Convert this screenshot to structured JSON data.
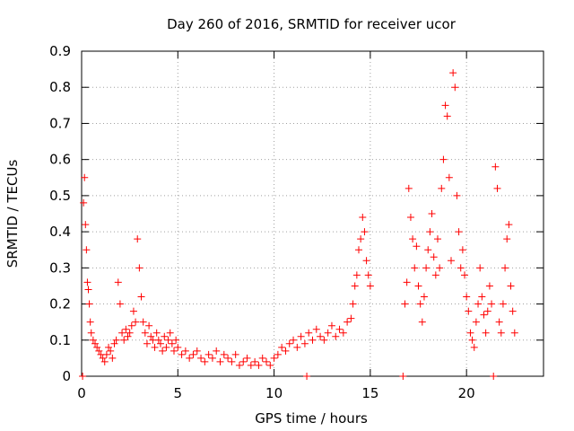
{
  "chart_data": {
    "type": "scatter",
    "title": "Day 260 of 2016, SRMTID for receiver ucor",
    "xlabel": "GPS time / hours",
    "ylabel": "SRMTID / TECUs",
    "xlim": [
      0,
      24
    ],
    "ylim": [
      0,
      0.9
    ],
    "x_ticks": [
      0,
      5,
      10,
      15,
      20
    ],
    "x_tick_labels": [
      "0",
      "5",
      "10",
      "15",
      "20"
    ],
    "y_ticks": [
      0,
      0.1,
      0.2,
      0.3,
      0.4,
      0.5,
      0.6,
      0.7,
      0.8,
      0.9
    ],
    "y_tick_labels": [
      "0",
      "0.1",
      "0.2",
      "0.3",
      "0.4",
      "0.5",
      "0.6",
      "0.7",
      "0.8",
      "0.9"
    ],
    "grid": true,
    "marker": "+",
    "color": "#ff0000",
    "series": [
      {
        "name": "SRMTID",
        "points": [
          [
            0.05,
            0.0
          ],
          [
            0.1,
            0.48
          ],
          [
            0.15,
            0.55
          ],
          [
            0.2,
            0.42
          ],
          [
            0.25,
            0.35
          ],
          [
            0.3,
            0.26
          ],
          [
            0.35,
            0.24
          ],
          [
            0.4,
            0.2
          ],
          [
            0.45,
            0.15
          ],
          [
            0.5,
            0.12
          ],
          [
            0.6,
            0.1
          ],
          [
            0.7,
            0.09
          ],
          [
            0.8,
            0.08
          ],
          [
            0.9,
            0.07
          ],
          [
            1.0,
            0.06
          ],
          [
            1.1,
            0.05
          ],
          [
            1.2,
            0.04
          ],
          [
            1.3,
            0.06
          ],
          [
            1.4,
            0.08
          ],
          [
            1.5,
            0.07
          ],
          [
            1.6,
            0.05
          ],
          [
            1.7,
            0.09
          ],
          [
            1.8,
            0.1
          ],
          [
            1.9,
            0.26
          ],
          [
            2.0,
            0.2
          ],
          [
            2.1,
            0.12
          ],
          [
            2.2,
            0.1
          ],
          [
            2.3,
            0.13
          ],
          [
            2.4,
            0.11
          ],
          [
            2.5,
            0.12
          ],
          [
            2.6,
            0.14
          ],
          [
            2.7,
            0.18
          ],
          [
            2.8,
            0.15
          ],
          [
            2.9,
            0.38
          ],
          [
            3.0,
            0.3
          ],
          [
            3.1,
            0.22
          ],
          [
            3.2,
            0.15
          ],
          [
            3.3,
            0.12
          ],
          [
            3.4,
            0.09
          ],
          [
            3.5,
            0.14
          ],
          [
            3.6,
            0.11
          ],
          [
            3.7,
            0.1
          ],
          [
            3.8,
            0.08
          ],
          [
            3.9,
            0.12
          ],
          [
            4.0,
            0.1
          ],
          [
            4.1,
            0.09
          ],
          [
            4.2,
            0.07
          ],
          [
            4.3,
            0.11
          ],
          [
            4.4,
            0.08
          ],
          [
            4.5,
            0.1
          ],
          [
            4.6,
            0.12
          ],
          [
            4.7,
            0.09
          ],
          [
            4.8,
            0.07
          ],
          [
            4.9,
            0.1
          ],
          [
            5.0,
            0.08
          ],
          [
            5.2,
            0.06
          ],
          [
            5.4,
            0.07
          ],
          [
            5.6,
            0.05
          ],
          [
            5.8,
            0.06
          ],
          [
            6.0,
            0.07
          ],
          [
            6.2,
            0.05
          ],
          [
            6.4,
            0.04
          ],
          [
            6.6,
            0.06
          ],
          [
            6.8,
            0.05
          ],
          [
            7.0,
            0.07
          ],
          [
            7.2,
            0.04
          ],
          [
            7.4,
            0.06
          ],
          [
            7.6,
            0.05
          ],
          [
            7.8,
            0.04
          ],
          [
            8.0,
            0.06
          ],
          [
            8.2,
            0.03
          ],
          [
            8.4,
            0.04
          ],
          [
            8.6,
            0.05
          ],
          [
            8.8,
            0.03
          ],
          [
            9.0,
            0.04
          ],
          [
            9.2,
            0.03
          ],
          [
            9.4,
            0.05
          ],
          [
            9.6,
            0.04
          ],
          [
            9.8,
            0.03
          ],
          [
            10.0,
            0.05
          ],
          [
            10.2,
            0.06
          ],
          [
            10.4,
            0.08
          ],
          [
            10.6,
            0.07
          ],
          [
            10.8,
            0.09
          ],
          [
            11.0,
            0.1
          ],
          [
            11.2,
            0.08
          ],
          [
            11.4,
            0.11
          ],
          [
            11.6,
            0.09
          ],
          [
            11.7,
            0.0
          ],
          [
            11.8,
            0.12
          ],
          [
            12.0,
            0.1
          ],
          [
            12.2,
            0.13
          ],
          [
            12.4,
            0.11
          ],
          [
            12.6,
            0.1
          ],
          [
            12.8,
            0.12
          ],
          [
            13.0,
            0.14
          ],
          [
            13.2,
            0.11
          ],
          [
            13.4,
            0.13
          ],
          [
            13.6,
            0.12
          ],
          [
            13.8,
            0.15
          ],
          [
            14.0,
            0.16
          ],
          [
            14.1,
            0.2
          ],
          [
            14.2,
            0.25
          ],
          [
            14.3,
            0.28
          ],
          [
            14.4,
            0.35
          ],
          [
            14.5,
            0.38
          ],
          [
            14.6,
            0.44
          ],
          [
            14.7,
            0.4
          ],
          [
            14.8,
            0.32
          ],
          [
            14.9,
            0.28
          ],
          [
            15.0,
            0.25
          ],
          [
            16.7,
            0.0
          ],
          [
            16.8,
            0.2
          ],
          [
            16.9,
            0.26
          ],
          [
            17.0,
            0.52
          ],
          [
            17.1,
            0.44
          ],
          [
            17.2,
            0.38
          ],
          [
            17.3,
            0.3
          ],
          [
            17.4,
            0.36
          ],
          [
            17.5,
            0.25
          ],
          [
            17.6,
            0.2
          ],
          [
            17.7,
            0.15
          ],
          [
            17.8,
            0.22
          ],
          [
            17.9,
            0.3
          ],
          [
            18.0,
            0.35
          ],
          [
            18.1,
            0.4
          ],
          [
            18.2,
            0.45
          ],
          [
            18.3,
            0.33
          ],
          [
            18.4,
            0.28
          ],
          [
            18.5,
            0.38
          ],
          [
            18.6,
            0.3
          ],
          [
            18.7,
            0.52
          ],
          [
            18.8,
            0.6
          ],
          [
            18.9,
            0.75
          ],
          [
            19.0,
            0.72
          ],
          [
            19.1,
            0.55
          ],
          [
            19.2,
            0.32
          ],
          [
            19.3,
            0.84
          ],
          [
            19.4,
            0.8
          ],
          [
            19.5,
            0.5
          ],
          [
            19.6,
            0.4
          ],
          [
            19.7,
            0.3
          ],
          [
            19.8,
            0.35
          ],
          [
            19.9,
            0.28
          ],
          [
            20.0,
            0.22
          ],
          [
            20.1,
            0.18
          ],
          [
            20.2,
            0.12
          ],
          [
            20.3,
            0.1
          ],
          [
            20.4,
            0.08
          ],
          [
            20.5,
            0.15
          ],
          [
            20.6,
            0.2
          ],
          [
            20.7,
            0.3
          ],
          [
            20.8,
            0.22
          ],
          [
            20.9,
            0.17
          ],
          [
            21.0,
            0.12
          ],
          [
            21.1,
            0.18
          ],
          [
            21.2,
            0.25
          ],
          [
            21.3,
            0.2
          ],
          [
            21.4,
            0.0
          ],
          [
            21.5,
            0.58
          ],
          [
            21.6,
            0.52
          ],
          [
            21.7,
            0.15
          ],
          [
            21.8,
            0.12
          ],
          [
            21.9,
            0.2
          ],
          [
            22.0,
            0.3
          ],
          [
            22.1,
            0.38
          ],
          [
            22.2,
            0.42
          ],
          [
            22.3,
            0.25
          ],
          [
            22.4,
            0.18
          ],
          [
            22.5,
            0.12
          ]
        ]
      }
    ]
  }
}
